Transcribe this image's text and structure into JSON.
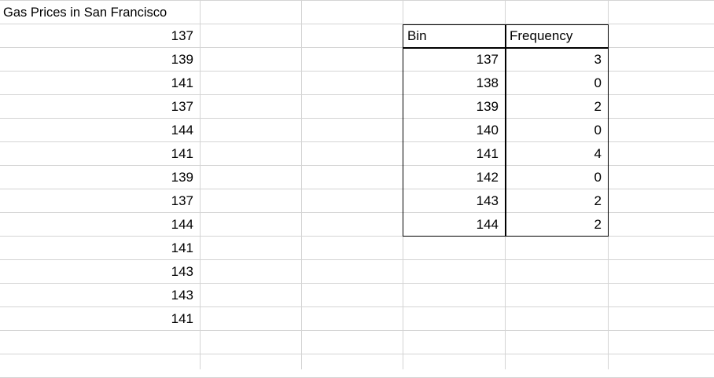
{
  "sheet": {
    "title": "Gas Prices in San Francisco",
    "prices": [
      "137",
      "139",
      "141",
      "137",
      "144",
      "141",
      "139",
      "137",
      "144",
      "141",
      "143",
      "143",
      "141"
    ]
  },
  "frequency_table": {
    "headers": [
      "Bin",
      "Frequency"
    ],
    "rows": [
      {
        "bin": "137",
        "frequency": "3"
      },
      {
        "bin": "138",
        "frequency": "0"
      },
      {
        "bin": "139",
        "frequency": "2"
      },
      {
        "bin": "140",
        "frequency": "0"
      },
      {
        "bin": "141",
        "frequency": "4"
      },
      {
        "bin": "142",
        "frequency": "0"
      },
      {
        "bin": "143",
        "frequency": "2"
      },
      {
        "bin": "144",
        "frequency": "2"
      }
    ]
  }
}
